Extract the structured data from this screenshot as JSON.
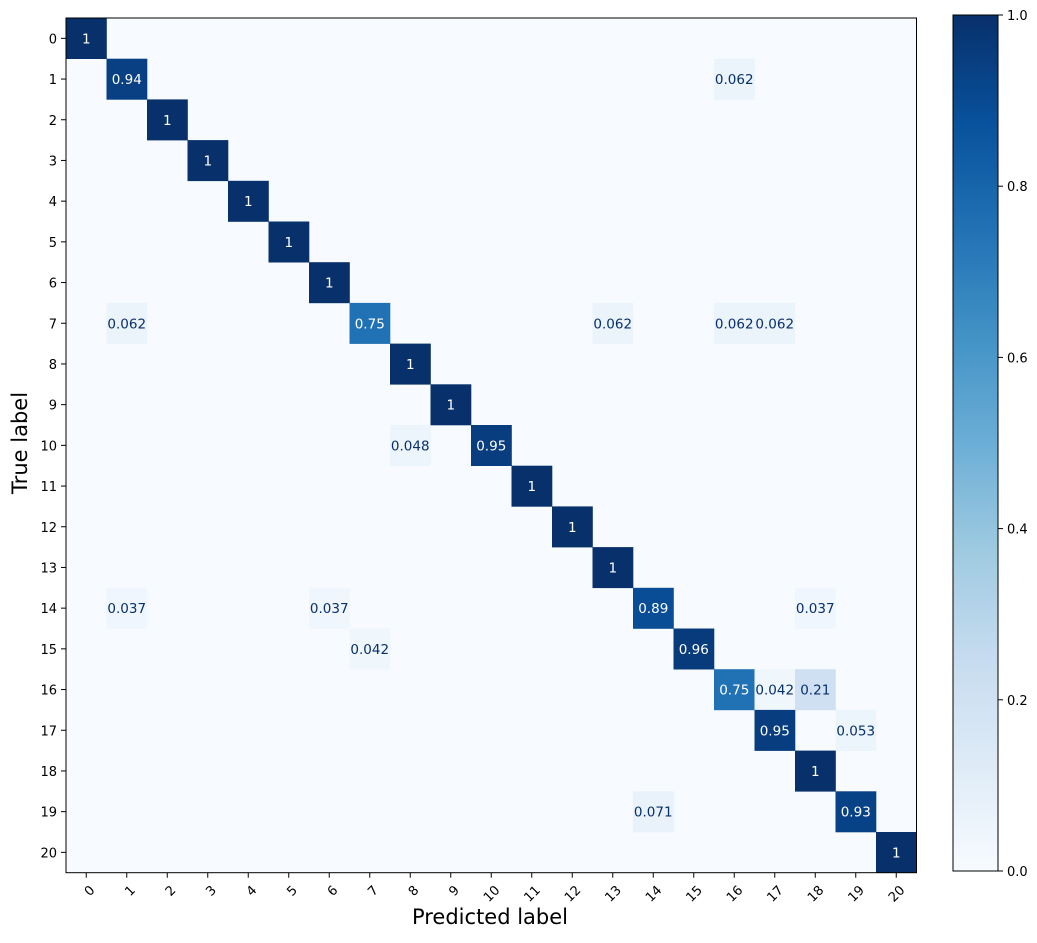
{
  "chart_data": {
    "type": "heatmap",
    "xlabel": "Predicted label",
    "ylabel": "True label",
    "x_ticks": [
      "0",
      "1",
      "2",
      "3",
      "4",
      "5",
      "6",
      "7",
      "8",
      "9",
      "10",
      "11",
      "12",
      "13",
      "14",
      "15",
      "16",
      "17",
      "18",
      "19",
      "20"
    ],
    "y_ticks": [
      "0",
      "1",
      "2",
      "3",
      "4",
      "5",
      "6",
      "7",
      "8",
      "9",
      "10",
      "11",
      "12",
      "13",
      "14",
      "15",
      "16",
      "17",
      "18",
      "19",
      "20"
    ],
    "colormap": "Blues",
    "colorbar": {
      "range": [
        0.0,
        1.0
      ],
      "ticks": [
        0.0,
        0.2,
        0.4,
        0.6,
        0.8,
        1.0
      ],
      "tick_labels": [
        "0.0",
        "0.2",
        "0.4",
        "0.6",
        "0.8",
        "1.0"
      ]
    },
    "cells": [
      {
        "row": 0,
        "col": 0,
        "value": 1,
        "label": "1"
      },
      {
        "row": 1,
        "col": 1,
        "value": 0.94,
        "label": "0.94"
      },
      {
        "row": 1,
        "col": 16,
        "value": 0.062,
        "label": "0.062"
      },
      {
        "row": 2,
        "col": 2,
        "value": 1,
        "label": "1"
      },
      {
        "row": 3,
        "col": 3,
        "value": 1,
        "label": "1"
      },
      {
        "row": 4,
        "col": 4,
        "value": 1,
        "label": "1"
      },
      {
        "row": 5,
        "col": 5,
        "value": 1,
        "label": "1"
      },
      {
        "row": 6,
        "col": 6,
        "value": 1,
        "label": "1"
      },
      {
        "row": 7,
        "col": 1,
        "value": 0.062,
        "label": "0.062"
      },
      {
        "row": 7,
        "col": 7,
        "value": 0.75,
        "label": "0.75"
      },
      {
        "row": 7,
        "col": 13,
        "value": 0.062,
        "label": "0.062"
      },
      {
        "row": 7,
        "col": 16,
        "value": 0.062,
        "label": "0.062"
      },
      {
        "row": 7,
        "col": 17,
        "value": 0.062,
        "label": "0.062"
      },
      {
        "row": 8,
        "col": 8,
        "value": 1,
        "label": "1"
      },
      {
        "row": 9,
        "col": 9,
        "value": 1,
        "label": "1"
      },
      {
        "row": 10,
        "col": 8,
        "value": 0.048,
        "label": "0.048"
      },
      {
        "row": 10,
        "col": 10,
        "value": 0.95,
        "label": "0.95"
      },
      {
        "row": 11,
        "col": 11,
        "value": 1,
        "label": "1"
      },
      {
        "row": 12,
        "col": 12,
        "value": 1,
        "label": "1"
      },
      {
        "row": 13,
        "col": 13,
        "value": 1,
        "label": "1"
      },
      {
        "row": 14,
        "col": 1,
        "value": 0.037,
        "label": "0.037"
      },
      {
        "row": 14,
        "col": 6,
        "value": 0.037,
        "label": "0.037"
      },
      {
        "row": 14,
        "col": 14,
        "value": 0.89,
        "label": "0.89"
      },
      {
        "row": 14,
        "col": 18,
        "value": 0.037,
        "label": "0.037"
      },
      {
        "row": 15,
        "col": 7,
        "value": 0.042,
        "label": "0.042"
      },
      {
        "row": 15,
        "col": 15,
        "value": 0.96,
        "label": "0.96"
      },
      {
        "row": 16,
        "col": 16,
        "value": 0.75,
        "label": "0.75"
      },
      {
        "row": 16,
        "col": 17,
        "value": 0.042,
        "label": "0.042"
      },
      {
        "row": 16,
        "col": 18,
        "value": 0.21,
        "label": "0.21"
      },
      {
        "row": 17,
        "col": 17,
        "value": 0.95,
        "label": "0.95"
      },
      {
        "row": 17,
        "col": 19,
        "value": 0.053,
        "label": "0.053"
      },
      {
        "row": 18,
        "col": 18,
        "value": 1,
        "label": "1"
      },
      {
        "row": 19,
        "col": 14,
        "value": 0.071,
        "label": "0.071"
      },
      {
        "row": 19,
        "col": 19,
        "value": 0.93,
        "label": "0.93"
      },
      {
        "row": 20,
        "col": 20,
        "value": 1,
        "label": "1"
      }
    ]
  }
}
